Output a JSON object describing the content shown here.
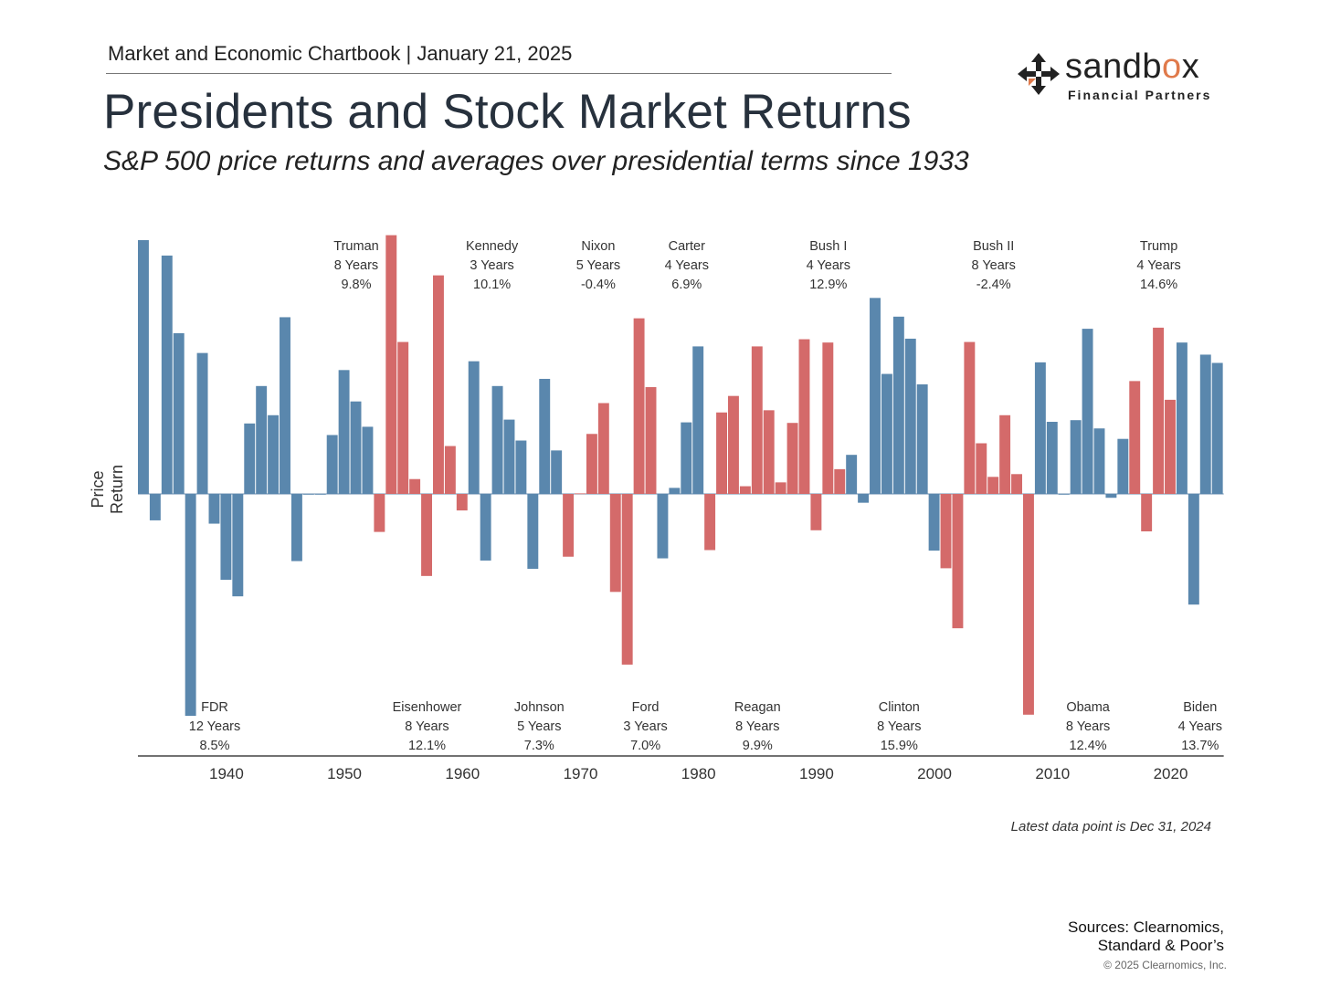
{
  "header": {
    "kicker": "Market and Economic Chartbook | January 21, 2025",
    "title": "Presidents and Stock Market Returns",
    "subtitle": "S&P 500 price returns and averages over presidential terms since 1933"
  },
  "logo": {
    "word_a": "sandb",
    "word_b": "o",
    "word_c": "x",
    "sub": "Financial Partners",
    "icon": "arrows-cross-icon"
  },
  "colors": {
    "democrat": "#5a87ad",
    "republican": "#d46a6a",
    "axis": "#444444"
  },
  "chart_data": {
    "type": "bar",
    "ylabel": "Price Return",
    "ylim": [
      -0.4,
      0.48
    ],
    "x_ticks": [
      1940,
      1950,
      1960,
      1970,
      1980,
      1990,
      2000,
      2010,
      2020
    ],
    "years": [
      1933,
      1934,
      1935,
      1936,
      1937,
      1938,
      1939,
      1940,
      1941,
      1942,
      1943,
      1944,
      1945,
      1946,
      1947,
      1948,
      1949,
      1950,
      1951,
      1952,
      1953,
      1954,
      1955,
      1956,
      1957,
      1958,
      1959,
      1960,
      1961,
      1962,
      1963,
      1964,
      1965,
      1966,
      1967,
      1968,
      1969,
      1970,
      1971,
      1972,
      1973,
      1974,
      1975,
      1976,
      1977,
      1978,
      1979,
      1980,
      1981,
      1982,
      1983,
      1984,
      1985,
      1986,
      1987,
      1988,
      1989,
      1990,
      1991,
      1992,
      1993,
      1994,
      1995,
      1996,
      1997,
      1998,
      1999,
      2000,
      2001,
      2002,
      2003,
      2004,
      2005,
      2006,
      2007,
      2008,
      2009,
      2010,
      2011,
      2012,
      2013,
      2014,
      2015,
      2016,
      2017,
      2018,
      2019,
      2020,
      2021,
      2022,
      2023,
      2024
    ],
    "values": [
      0.461,
      -0.048,
      0.433,
      0.292,
      -0.403,
      0.256,
      -0.054,
      -0.156,
      -0.186,
      0.128,
      0.196,
      0.143,
      0.321,
      -0.122,
      0.0,
      0.0,
      0.107,
      0.225,
      0.168,
      0.122,
      -0.069,
      0.47,
      0.276,
      0.027,
      -0.149,
      0.397,
      0.087,
      -0.03,
      0.241,
      -0.121,
      0.196,
      0.135,
      0.097,
      -0.136,
      0.209,
      0.079,
      -0.114,
      0.001,
      0.109,
      0.165,
      -0.178,
      -0.31,
      0.319,
      0.194,
      -0.117,
      0.011,
      0.13,
      0.268,
      -0.102,
      0.148,
      0.178,
      0.014,
      0.268,
      0.152,
      0.021,
      0.129,
      0.281,
      -0.066,
      0.275,
      0.045,
      0.071,
      -0.016,
      0.356,
      0.218,
      0.322,
      0.282,
      0.199,
      -0.103,
      -0.135,
      -0.244,
      0.276,
      0.092,
      0.031,
      0.143,
      0.036,
      -0.401,
      0.239,
      0.131,
      0.0,
      0.134,
      0.3,
      0.119,
      -0.007,
      0.1,
      0.205,
      -0.068,
      0.302,
      0.171,
      0.275,
      -0.201,
      0.253,
      0.238
    ],
    "party": [
      "D",
      "D",
      "D",
      "D",
      "D",
      "D",
      "D",
      "D",
      "D",
      "D",
      "D",
      "D",
      "D",
      "D",
      "D",
      "D",
      "D",
      "D",
      "D",
      "D",
      "R",
      "R",
      "R",
      "R",
      "R",
      "R",
      "R",
      "R",
      "D",
      "D",
      "D",
      "D",
      "D",
      "D",
      "D",
      "D",
      "R",
      "R",
      "R",
      "R",
      "R",
      "R",
      "R",
      "R",
      "D",
      "D",
      "D",
      "D",
      "R",
      "R",
      "R",
      "R",
      "R",
      "R",
      "R",
      "R",
      "R",
      "R",
      "R",
      "R",
      "D",
      "D",
      "D",
      "D",
      "D",
      "D",
      "D",
      "D",
      "R",
      "R",
      "R",
      "R",
      "R",
      "R",
      "R",
      "R",
      "D",
      "D",
      "D",
      "D",
      "D",
      "D",
      "D",
      "D",
      "R",
      "R",
      "R",
      "R",
      "D",
      "D",
      "D",
      "D"
    ],
    "top_labels": [
      {
        "name": "Truman",
        "term": "8 Years",
        "avg": "9.8%",
        "year": 1951
      },
      {
        "name": "Kennedy",
        "term": "3 Years",
        "avg": "10.1%",
        "year": 1962.5
      },
      {
        "name": "Nixon",
        "term": "5 Years",
        "avg": "-0.4%",
        "year": 1971.5
      },
      {
        "name": "Carter",
        "term": "4 Years",
        "avg": "6.9%",
        "year": 1979
      },
      {
        "name": "Bush I",
        "term": "4 Years",
        "avg": "12.9%",
        "year": 1991
      },
      {
        "name": "Bush II",
        "term": "8 Years",
        "avg": "-2.4%",
        "year": 2005
      },
      {
        "name": "Trump",
        "term": "4 Years",
        "avg": "14.6%",
        "year": 2019
      }
    ],
    "bottom_labels": [
      {
        "name": "FDR",
        "term": "12 Years",
        "avg": "8.5%",
        "year": 1939
      },
      {
        "name": "Eisenhower",
        "term": "8 Years",
        "avg": "12.1%",
        "year": 1957
      },
      {
        "name": "Johnson",
        "term": "5 Years",
        "avg": "7.3%",
        "year": 1966.5
      },
      {
        "name": "Ford",
        "term": "3 Years",
        "avg": "7.0%",
        "year": 1975.5
      },
      {
        "name": "Reagan",
        "term": "8 Years",
        "avg": "9.9%",
        "year": 1985
      },
      {
        "name": "Clinton",
        "term": "8 Years",
        "avg": "15.9%",
        "year": 1997
      },
      {
        "name": "Obama",
        "term": "8 Years",
        "avg": "12.4%",
        "year": 2013
      },
      {
        "name": "Biden",
        "term": "4 Years",
        "avg": "13.7%",
        "year": 2022.5
      }
    ]
  },
  "footer": {
    "note": "Latest data point is Dec 31, 2024",
    "sources_1": "Sources: Clearnomics,",
    "sources_2": "Standard & Poor’s",
    "copyright": "© 2025 Clearnomics, Inc."
  }
}
